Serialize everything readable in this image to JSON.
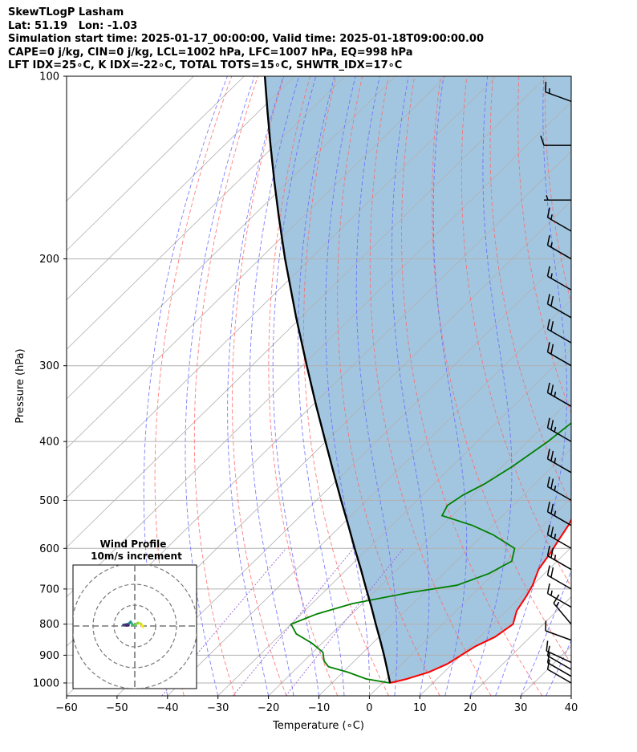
{
  "header": {
    "line1": "SkewTLogP Lasham",
    "line2": "Lat: 51.19   Lon: -1.03",
    "line3": "Simulation start time: 2025-01-17_00:00:00, Valid time: 2025-01-18T09:00:00.00",
    "line4": "CAPE=0 j/kg, CIN=0 j/kg, LCL=1002 hPa, LFC=1007 hPa, EQ=998 hPa",
    "line5": "LFT IDX=25∘C, K IDX=-22∘C, TOTAL TOTS=15∘C, SHWTR_IDX=17∘C"
  },
  "colors": {
    "temperature": "#ff0000",
    "dewpoint": "#008000",
    "parcel": "#000000",
    "cape_fill": "#a3c6e0",
    "dry_adiabats": "#ff6666",
    "moist_adiabats": "#6666ff",
    "mixing_ratio": "#9966cc",
    "isotherms": "#b0b0b0"
  },
  "chart_data": {
    "type": "line",
    "subtype": "skew-t log-p",
    "xlabel": "Temperature (∘C)",
    "ylabel": "Pressure (hPa)",
    "xlim": [
      -60,
      40
    ],
    "ylim": [
      1050,
      100
    ],
    "yscale": "log",
    "grid": true,
    "x_ticks": [
      "−60",
      "−50",
      "−40",
      "−30",
      "−20",
      "−10",
      "0",
      "10",
      "20",
      "30",
      "40"
    ],
    "x_tick_values": [
      -60,
      -50,
      -40,
      -30,
      -20,
      -10,
      0,
      10,
      20,
      30,
      40
    ],
    "y_ticks": [
      "100",
      "200",
      "300",
      "400",
      "500",
      "600",
      "700",
      "800",
      "900",
      "1000"
    ],
    "y_tick_values": [
      100,
      200,
      300,
      400,
      500,
      600,
      700,
      800,
      900,
      1000
    ],
    "series": [
      {
        "key": "temperature",
        "p": [
          1000,
          985,
          960,
          930,
          900,
          870,
          840,
          800,
          760,
          720,
          690,
          650,
          610,
          580,
          550,
          520,
          500,
          470,
          440,
          420,
          400,
          380,
          360,
          340,
          320,
          300,
          280,
          260,
          240,
          220,
          210,
          200,
          190,
          180,
          170,
          160,
          150,
          140,
          130,
          120,
          110,
          100
        ],
        "t": [
          1.5,
          4,
          7,
          9,
          10,
          11,
          13,
          14,
          12,
          11,
          10,
          8,
          7,
          6,
          5,
          3.5,
          2,
          0,
          -2,
          -3,
          -4,
          -5,
          -6,
          -7,
          -8,
          -8.5,
          -9,
          -9.5,
          -10,
          -10.5,
          -10.5,
          -9.5,
          -8,
          -6,
          -3,
          1,
          4,
          6,
          8,
          10,
          12,
          13
        ]
      },
      {
        "key": "dewpoint",
        "p": [
          1000,
          985,
          960,
          940,
          920,
          890,
          860,
          830,
          800,
          770,
          740,
          710,
          690,
          660,
          630,
          600,
          570,
          550,
          530,
          510,
          490,
          470,
          440,
          400,
          370,
          340,
          320,
          300,
          280,
          260,
          240,
          220,
          200,
          190,
          180,
          170,
          160,
          150,
          140,
          130,
          120,
          110,
          100
        ],
        "t": [
          1.5,
          -4,
          -9,
          -14,
          -16,
          -18,
          -22,
          -27,
          -30,
          -27,
          -22,
          -13,
          -5,
          -1,
          1,
          -1,
          -8,
          -14,
          -22,
          -23,
          -22,
          -20,
          -18,
          -16,
          -15,
          -15,
          -17,
          -18,
          -17,
          -16,
          -15,
          -14,
          -13,
          -11,
          -9,
          -9,
          -10,
          -11,
          -13,
          -13,
          -12,
          -11,
          -10
        ]
      },
      {
        "key": "parcel",
        "p": [
          1000,
          950,
          900,
          850,
          800,
          750,
          700,
          650,
          600,
          550,
          500,
          450,
          400,
          350,
          300,
          250,
          200,
          170,
          150,
          130,
          115,
          100
        ],
        "t": [
          1.5,
          -1.8,
          -5.3,
          -9.1,
          -13.2,
          -17.5,
          -22.2,
          -27.2,
          -32.7,
          -38.6,
          -45.1,
          -52.2,
          -60.1,
          -69,
          -79.1,
          -90.9,
          -105,
          -114.9,
          -122.4,
          -130.8,
          -137.9,
          -145.9
        ]
      }
    ],
    "wind_barbs": [
      {
        "p": 1000,
        "speed_kt": 10,
        "direction_deg": 300
      },
      {
        "p": 975,
        "speed_kt": 10,
        "direction_deg": 300
      },
      {
        "p": 950,
        "speed_kt": 10,
        "direction_deg": 300
      },
      {
        "p": 925,
        "speed_kt": 10,
        "direction_deg": 295
      },
      {
        "p": 850,
        "speed_kt": 10,
        "direction_deg": 290
      },
      {
        "p": 800,
        "speed_kt": 15,
        "direction_deg": 320
      },
      {
        "p": 750,
        "speed_kt": 15,
        "direction_deg": 300
      },
      {
        "p": 700,
        "speed_kt": 20,
        "direction_deg": 300
      },
      {
        "p": 650,
        "speed_kt": 25,
        "direction_deg": 300
      },
      {
        "p": 600,
        "speed_kt": 25,
        "direction_deg": 300
      },
      {
        "p": 550,
        "speed_kt": 25,
        "direction_deg": 300
      },
      {
        "p": 500,
        "speed_kt": 25,
        "direction_deg": 300
      },
      {
        "p": 450,
        "speed_kt": 25,
        "direction_deg": 300
      },
      {
        "p": 400,
        "speed_kt": 25,
        "direction_deg": 300
      },
      {
        "p": 350,
        "speed_kt": 25,
        "direction_deg": 300
      },
      {
        "p": 300,
        "speed_kt": 20,
        "direction_deg": 300
      },
      {
        "p": 275,
        "speed_kt": 20,
        "direction_deg": 300
      },
      {
        "p": 250,
        "speed_kt": 20,
        "direction_deg": 300
      },
      {
        "p": 225,
        "speed_kt": 15,
        "direction_deg": 300
      },
      {
        "p": 200,
        "speed_kt": 15,
        "direction_deg": 300
      },
      {
        "p": 180,
        "speed_kt": 15,
        "direction_deg": 300
      },
      {
        "p": 160,
        "speed_kt": 5,
        "direction_deg": 270
      },
      {
        "p": 130,
        "speed_kt": 10,
        "direction_deg": 270
      },
      {
        "p": 110,
        "speed_kt": 15,
        "direction_deg": 290
      }
    ],
    "hodograph": {
      "title": "Wind Profile",
      "subtitle": "10m/s increment",
      "u": [
        4,
        3,
        1.5,
        0,
        -1,
        -2,
        -3,
        -4,
        -5.5,
        -5,
        -4,
        -3
      ],
      "v": [
        -0.5,
        1,
        1.5,
        0.5,
        0.5,
        2,
        1,
        0.8,
        0.5,
        0.5,
        0.3,
        0.3
      ]
    }
  }
}
